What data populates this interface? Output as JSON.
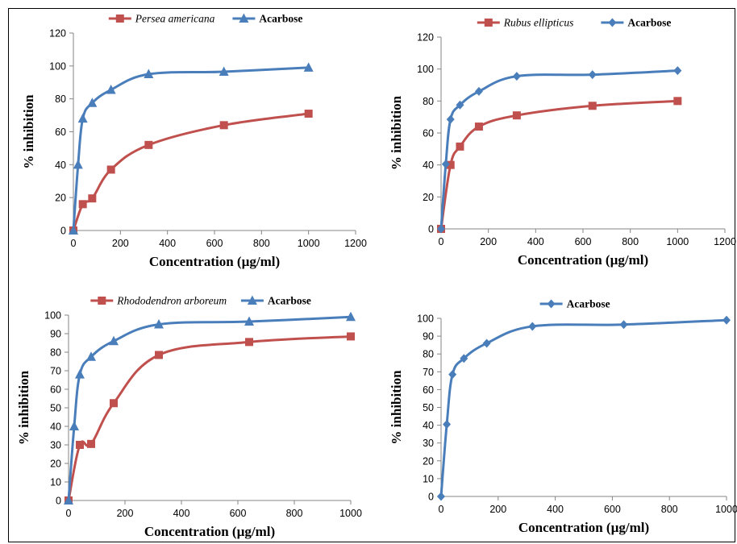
{
  "colors": {
    "red_series": "#C0504D",
    "blue_series": "#4A7EBB"
  },
  "chart_data": [
    {
      "type": "line",
      "x": [
        0,
        20,
        40,
        80,
        160,
        320,
        640,
        1000
      ],
      "series": [
        {
          "name": "Persea americana",
          "values": [
            0,
            null,
            16,
            19.5,
            37,
            52,
            64,
            71
          ],
          "marker": "square",
          "color": "#C0504D",
          "italic": true
        },
        {
          "name": "Acarbose",
          "values": [
            0,
            40,
            68,
            77.5,
            85.5,
            95,
            96.5,
            99
          ],
          "marker": "triangle",
          "color": "#4A7EBB",
          "italic": false
        }
      ],
      "xlabel": "Concentration (µg/ml)",
      "ylabel": "% inhibition",
      "xlim": [
        0,
        1200
      ],
      "ylim": [
        0,
        120
      ],
      "xticks": [
        0,
        200,
        400,
        600,
        800,
        1000,
        1200
      ],
      "yticks": [
        0,
        20,
        40,
        60,
        80,
        100,
        120
      ],
      "legend": "top",
      "grid": false
    },
    {
      "type": "line",
      "x": [
        0,
        20,
        40,
        80,
        160,
        320,
        640,
        1000
      ],
      "series": [
        {
          "name": "Rubus ellipticus",
          "values": [
            0,
            null,
            40,
            51.5,
            64,
            71,
            77,
            80
          ],
          "marker": "square",
          "color": "#C0504D",
          "italic": true
        },
        {
          "name": "Acarbose",
          "values": [
            0,
            40.5,
            68.5,
            77.5,
            86,
            95.5,
            96.5,
            99
          ],
          "marker": "diamond",
          "color": "#4A7EBB",
          "italic": false
        }
      ],
      "xlabel": "Concentration (µg/ml)",
      "ylabel": "% inhibition",
      "xlim": [
        0,
        1200
      ],
      "ylim": [
        0,
        120
      ],
      "xticks": [
        0,
        200,
        400,
        600,
        800,
        1000,
        1200
      ],
      "yticks": [
        0,
        20,
        40,
        60,
        80,
        100,
        120
      ],
      "legend": "top",
      "grid": false
    },
    {
      "type": "line",
      "x": [
        0,
        20,
        40,
        80,
        160,
        320,
        640,
        1000
      ],
      "series": [
        {
          "name": "Rhododendron arboreum",
          "values": [
            0,
            null,
            30,
            30.5,
            52.5,
            78.5,
            85.5,
            88.5
          ],
          "marker": "square",
          "color": "#C0504D",
          "italic": true
        },
        {
          "name": "Acarbose",
          "values": [
            0,
            40,
            68,
            77.5,
            86,
            95,
            96.5,
            99
          ],
          "marker": "triangle",
          "color": "#4A7EBB",
          "italic": false
        }
      ],
      "xlabel": "Concentration (µg/ml)",
      "ylabel": "% inhibition",
      "xlim": [
        0,
        1000
      ],
      "ylim": [
        0,
        100
      ],
      "xticks": [
        0,
        200,
        400,
        600,
        800,
        1000
      ],
      "yticks": [
        0,
        10,
        20,
        30,
        40,
        50,
        60,
        70,
        80,
        90,
        100
      ],
      "legend": "top",
      "grid": false
    },
    {
      "type": "line",
      "x": [
        0,
        20,
        40,
        80,
        160,
        320,
        640,
        1000
      ],
      "series": [
        {
          "name": "Acarbose",
          "values": [
            0,
            40.5,
            68.5,
            77.5,
            86,
            95.5,
            96.5,
            99
          ],
          "marker": "diamond",
          "color": "#4A7EBB",
          "italic": false
        }
      ],
      "xlabel": "Concentration (µg/ml)",
      "ylabel": "% inhibition",
      "xlim": [
        0,
        1000
      ],
      "ylim": [
        0,
        100
      ],
      "xticks": [
        0,
        200,
        400,
        600,
        800,
        1000
      ],
      "yticks": [
        0,
        10,
        20,
        30,
        40,
        50,
        60,
        70,
        80,
        90,
        100
      ],
      "legend": "top",
      "grid": false
    }
  ]
}
